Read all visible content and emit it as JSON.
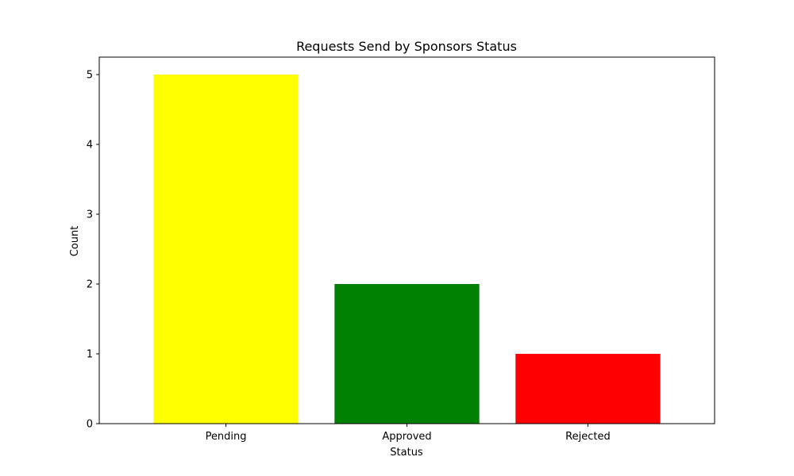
{
  "chart_data": {
    "type": "bar",
    "title": "Requests Send by Sponsors Status",
    "xlabel": "Status",
    "ylabel": "Count",
    "categories": [
      "Pending",
      "Approved",
      "Rejected"
    ],
    "values": [
      5,
      2,
      1
    ],
    "colors": [
      "#ffff00",
      "#008000",
      "#ff0000"
    ],
    "ylim": [
      0,
      5.25
    ],
    "yticks": [
      0,
      1,
      2,
      3,
      4,
      5
    ],
    "ytick_labels": [
      "0",
      "1",
      "2",
      "3",
      "4",
      "5"
    ],
    "grid": false,
    "legend": "none"
  }
}
